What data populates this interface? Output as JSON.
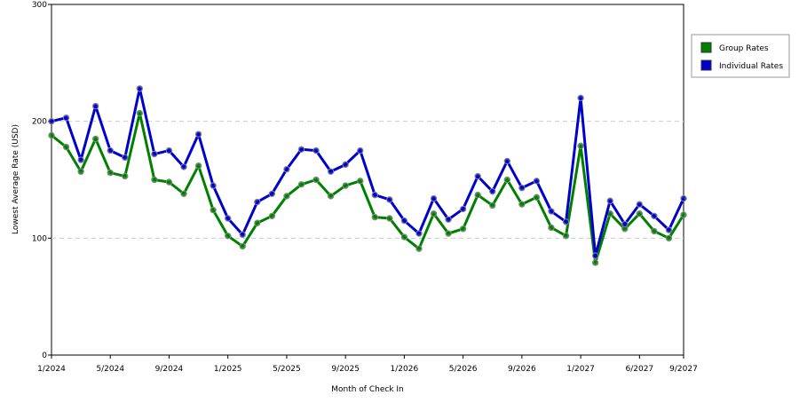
{
  "chart_data": {
    "type": "line",
    "y_label": "Lowest Average Rate (USD)",
    "x_label": "Month of Check In",
    "categories": [
      "1/2024",
      null,
      null,
      null,
      "5/2024",
      null,
      null,
      null,
      "9/2024",
      null,
      null,
      null,
      "1/2025",
      null,
      null,
      null,
      "5/2025",
      null,
      null,
      null,
      "9/2025",
      null,
      null,
      null,
      "1/2026",
      null,
      null,
      null,
      "5/2026",
      null,
      null,
      null,
      "9/2026",
      null,
      null,
      null,
      "1/2027",
      null,
      null,
      null,
      "6/2027",
      null,
      null,
      "9/2027"
    ],
    "series": [
      {
        "name": "Group Rates",
        "color": "#008000",
        "values": [
          188,
          178,
          157,
          185,
          156,
          153,
          207,
          150,
          148,
          138,
          162,
          124,
          102,
          93,
          113,
          119,
          136,
          146,
          150,
          136,
          145,
          149,
          118,
          117,
          101,
          91,
          121,
          104,
          108,
          137,
          128,
          150,
          129,
          135,
          109,
          102,
          179,
          79,
          121,
          108,
          121,
          106,
          100,
          120
        ]
      },
      {
        "name": "Individual Rates",
        "color": "#0000cc",
        "values": [
          200,
          203,
          167,
          213,
          175,
          169,
          228,
          172,
          175,
          161,
          189,
          145,
          117,
          103,
          131,
          138,
          159,
          176,
          175,
          157,
          163,
          175,
          137,
          133,
          115,
          104,
          134,
          116,
          125,
          153,
          140,
          166,
          143,
          149,
          123,
          114,
          220,
          85,
          132,
          112,
          129,
          119,
          107,
          134
        ]
      }
    ],
    "ylim": [
      0,
      300
    ],
    "yticks": [
      0,
      100,
      200,
      300
    ],
    "grid": true,
    "legend": "right"
  }
}
